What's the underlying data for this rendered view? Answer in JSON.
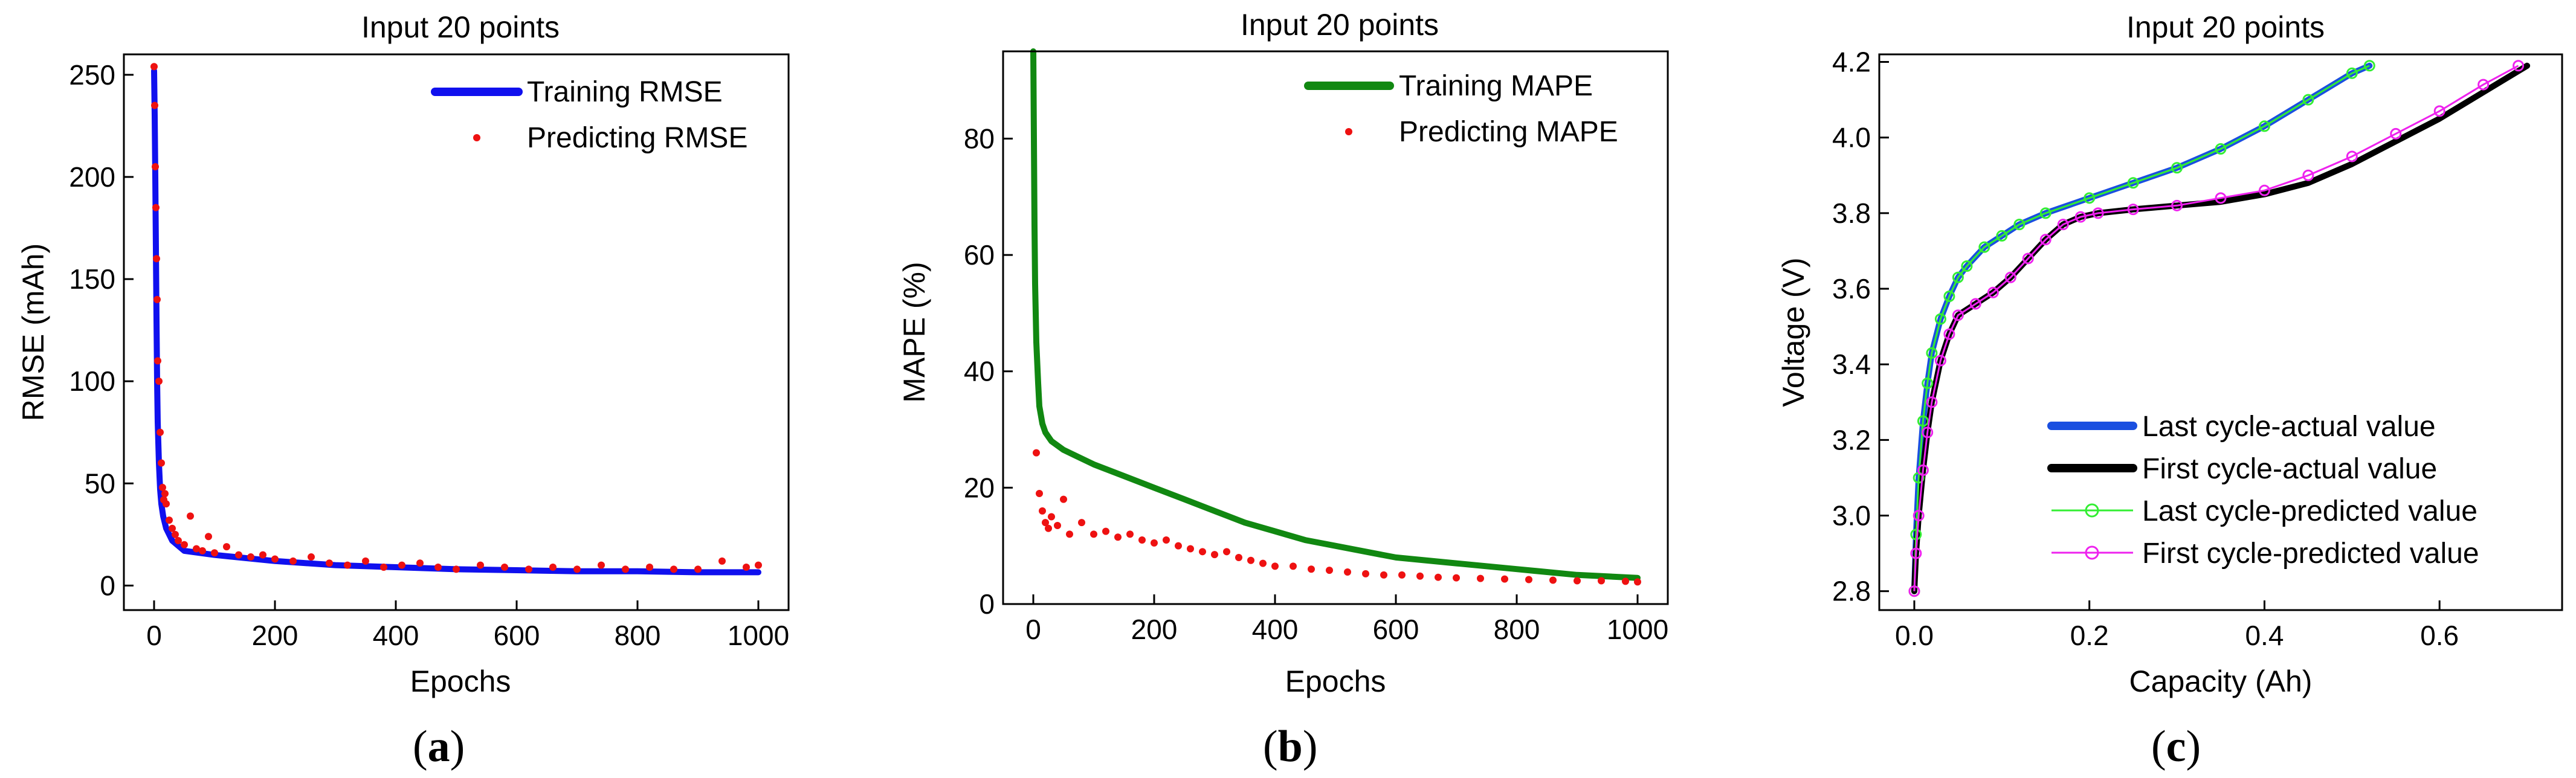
{
  "chart_data": [
    {
      "id": "a",
      "type": "line+scatter",
      "title": "Input 20 points",
      "xlabel": "Epochs",
      "ylabel": "RMSE (mAh)",
      "caption": "a",
      "xlim": [
        -50,
        1050
      ],
      "ylim": [
        -12,
        260
      ],
      "xticks": [
        0,
        200,
        400,
        600,
        800,
        1000
      ],
      "yticks": [
        0,
        50,
        100,
        150,
        200,
        250
      ],
      "xtick_labels": [
        "0",
        "200",
        "400",
        "600",
        "800",
        "1000"
      ],
      "ytick_labels": [
        "0",
        "50",
        "100",
        "150",
        "200",
        "250"
      ],
      "legend_position": "top-right",
      "series": [
        {
          "name": "Training RMSE",
          "style": "line",
          "color": "#1010ee",
          "x": [
            0,
            1,
            2,
            3,
            4,
            5,
            6,
            8,
            10,
            12,
            15,
            20,
            30,
            50,
            100,
            200,
            300,
            400,
            500,
            600,
            700,
            800,
            900,
            1000
          ],
          "y": [
            252,
            230,
            200,
            165,
            130,
            100,
            80,
            60,
            47,
            40,
            34,
            28,
            22,
            17,
            15,
            12,
            10,
            9,
            8,
            7.5,
            7,
            7,
            6.5,
            6.5
          ]
        },
        {
          "name": "Predicting RMSE",
          "style": "scatter",
          "color": "#ee1111",
          "x": [
            0,
            1,
            2,
            3,
            4,
            5,
            6,
            8,
            10,
            12,
            14,
            16,
            18,
            20,
            25,
            30,
            35,
            40,
            50,
            60,
            70,
            80,
            90,
            100,
            120,
            140,
            160,
            180,
            200,
            230,
            260,
            290,
            320,
            350,
            380,
            410,
            440,
            470,
            500,
            540,
            580,
            620,
            660,
            700,
            740,
            780,
            820,
            860,
            900,
            940,
            980,
            1000
          ],
          "y": [
            254,
            235,
            205,
            185,
            160,
            140,
            110,
            100,
            75,
            60,
            48,
            42,
            45,
            40,
            32,
            28,
            25,
            22,
            20,
            34,
            18,
            17,
            24,
            16,
            19,
            15,
            14,
            15,
            13,
            12,
            14,
            11,
            10,
            12,
            9,
            10,
            11,
            9,
            8,
            10,
            9,
            8,
            9,
            8,
            10,
            8,
            9,
            8,
            8,
            12,
            9,
            10
          ]
        }
      ]
    },
    {
      "id": "b",
      "type": "line+scatter",
      "title": "Input 20 points",
      "xlabel": "Epochs",
      "ylabel": "MAPE (%)",
      "caption": "b",
      "xlim": [
        -50,
        1050
      ],
      "ylim": [
        0,
        95
      ],
      "xticks": [
        0,
        200,
        400,
        600,
        800,
        1000
      ],
      "yticks": [
        0,
        20,
        40,
        60,
        80
      ],
      "xtick_labels": [
        "0",
        "200",
        "400",
        "600",
        "800",
        "1000"
      ],
      "ytick_labels": [
        "0",
        "20",
        "40",
        "60",
        "80"
      ],
      "legend_position": "top-right",
      "series": [
        {
          "name": "Training MAPE",
          "style": "line",
          "color": "#118811",
          "x": [
            0,
            1,
            2,
            3,
            5,
            8,
            10,
            15,
            20,
            30,
            50,
            100,
            150,
            200,
            250,
            300,
            350,
            400,
            450,
            500,
            600,
            700,
            800,
            900,
            1000
          ],
          "y": [
            95,
            80,
            65,
            55,
            45,
            38,
            34,
            31,
            29.5,
            28,
            26.5,
            24,
            22,
            20,
            18,
            16,
            14,
            12.5,
            11,
            10,
            8,
            7,
            6,
            5,
            4.5
          ]
        },
        {
          "name": "Predicting MAPE",
          "style": "scatter",
          "color": "#ee1111",
          "x": [
            5,
            10,
            15,
            20,
            25,
            30,
            40,
            50,
            60,
            80,
            100,
            120,
            140,
            160,
            180,
            200,
            220,
            240,
            260,
            280,
            300,
            320,
            340,
            360,
            380,
            400,
            430,
            460,
            490,
            520,
            550,
            580,
            610,
            640,
            670,
            700,
            740,
            780,
            820,
            860,
            900,
            940,
            980,
            1000
          ],
          "y": [
            26,
            19,
            16,
            14,
            13,
            15,
            13.5,
            18,
            12,
            14,
            12,
            12.5,
            11.5,
            12,
            11,
            10.5,
            11,
            10,
            9.5,
            9,
            8.5,
            9,
            8,
            7.5,
            7,
            6.5,
            6.5,
            6,
            5.8,
            5.5,
            5.2,
            5,
            5,
            4.8,
            4.6,
            4.5,
            4.4,
            4.3,
            4.2,
            4.1,
            4,
            4,
            3.9,
            3.8
          ]
        }
      ]
    },
    {
      "id": "c",
      "type": "line+scatter",
      "title": "Input 20 points",
      "xlabel": "Capacity (Ah)",
      "ylabel": "Voltage (V)",
      "caption": "c",
      "xlim": [
        -0.04,
        0.74
      ],
      "ylim": [
        2.75,
        4.22
      ],
      "xticks": [
        0,
        0.2,
        0.4,
        0.6
      ],
      "yticks": [
        2.8,
        3.0,
        3.2,
        3.4,
        3.6,
        3.8,
        4.0,
        4.2
      ],
      "xtick_labels": [
        "0.0",
        "0.2",
        "0.4",
        "0.6"
      ],
      "ytick_labels": [
        "2.8",
        "3.0",
        "3.2",
        "3.4",
        "3.6",
        "3.8",
        "4.0",
        "4.2"
      ],
      "legend_position": "bottom-right",
      "series": [
        {
          "name": "Last cycle-actual value",
          "style": "line",
          "color": "#1a4fe0",
          "x": [
            0,
            0.002,
            0.005,
            0.01,
            0.015,
            0.02,
            0.03,
            0.04,
            0.05,
            0.06,
            0.08,
            0.1,
            0.12,
            0.15,
            0.2,
            0.25,
            0.3,
            0.35,
            0.4,
            0.45,
            0.5,
            0.52
          ],
          "y": [
            2.8,
            2.95,
            3.1,
            3.25,
            3.35,
            3.43,
            3.52,
            3.58,
            3.63,
            3.66,
            3.71,
            3.74,
            3.77,
            3.8,
            3.84,
            3.88,
            3.92,
            3.97,
            4.03,
            4.1,
            4.17,
            4.19
          ]
        },
        {
          "name": "First cycle-actual value",
          "style": "line",
          "color": "#000000",
          "x": [
            0,
            0.002,
            0.005,
            0.01,
            0.015,
            0.02,
            0.03,
            0.04,
            0.05,
            0.07,
            0.09,
            0.11,
            0.13,
            0.15,
            0.17,
            0.19,
            0.21,
            0.25,
            0.3,
            0.35,
            0.4,
            0.45,
            0.5,
            0.55,
            0.6,
            0.65,
            0.7
          ],
          "y": [
            2.8,
            2.9,
            3.0,
            3.12,
            3.22,
            3.3,
            3.41,
            3.48,
            3.53,
            3.56,
            3.59,
            3.63,
            3.68,
            3.73,
            3.77,
            3.79,
            3.8,
            3.81,
            3.82,
            3.83,
            3.85,
            3.88,
            3.93,
            3.99,
            4.05,
            4.12,
            4.19
          ]
        },
        {
          "name": "Last cycle-predicted value",
          "style": "line-marker",
          "color": "#33ee33",
          "x": [
            0,
            0.002,
            0.005,
            0.01,
            0.015,
            0.02,
            0.03,
            0.04,
            0.05,
            0.06,
            0.08,
            0.1,
            0.12,
            0.15,
            0.2,
            0.25,
            0.3,
            0.35,
            0.4,
            0.45,
            0.5,
            0.52
          ],
          "y": [
            2.8,
            2.95,
            3.1,
            3.25,
            3.35,
            3.43,
            3.52,
            3.58,
            3.63,
            3.66,
            3.71,
            3.74,
            3.77,
            3.8,
            3.84,
            3.88,
            3.92,
            3.97,
            4.03,
            4.1,
            4.17,
            4.19
          ]
        },
        {
          "name": "First cycle-predicted value",
          "style": "line-marker",
          "color": "#ee22ee",
          "x": [
            0,
            0.002,
            0.005,
            0.01,
            0.015,
            0.02,
            0.03,
            0.04,
            0.05,
            0.07,
            0.09,
            0.11,
            0.13,
            0.15,
            0.17,
            0.19,
            0.21,
            0.25,
            0.3,
            0.35,
            0.4,
            0.45,
            0.5,
            0.55,
            0.6,
            0.65,
            0.69
          ],
          "y": [
            2.8,
            2.9,
            3.0,
            3.12,
            3.22,
            3.3,
            3.41,
            3.48,
            3.53,
            3.56,
            3.59,
            3.63,
            3.68,
            3.73,
            3.77,
            3.79,
            3.8,
            3.81,
            3.82,
            3.84,
            3.86,
            3.9,
            3.95,
            4.01,
            4.07,
            4.14,
            4.19
          ]
        }
      ]
    }
  ]
}
